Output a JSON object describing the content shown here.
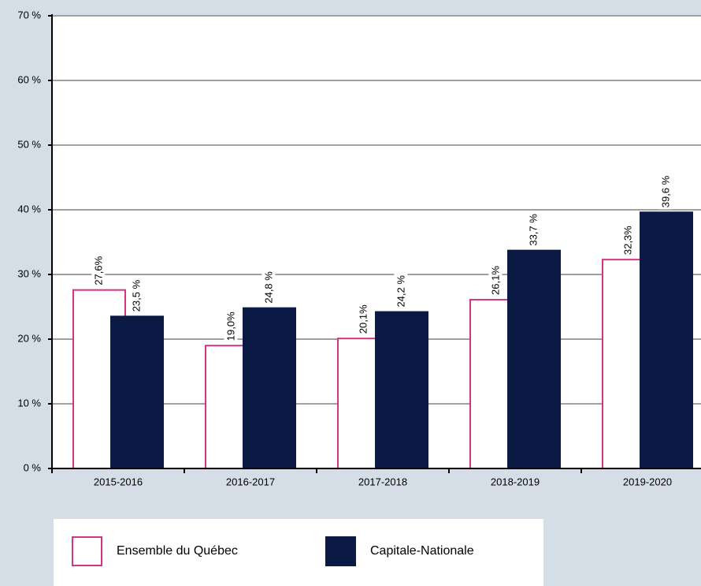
{
  "chart_data": {
    "type": "bar",
    "categories": [
      "2015-2016",
      "2016-2017",
      "2017-2018",
      "2018-2019",
      "2019-2020"
    ],
    "series": [
      {
        "name": "Ensemble du Québec",
        "color": "#d63384",
        "fill": "#ffffff",
        "values": [
          27.6,
          19.0,
          20.1,
          26.1,
          32.3
        ],
        "value_labels": [
          "27,6%",
          "19,0%",
          "20,1%",
          "26,1%",
          "32,3%"
        ]
      },
      {
        "name": "Capitale-Nationale",
        "color": "#0b1a45",
        "fill": "#0b1a45",
        "values": [
          23.5,
          24.8,
          24.2,
          33.7,
          39.6
        ],
        "value_labels": [
          "23,5 %",
          "24,8 %",
          "24,2 %",
          "33,7 %",
          "39,6 %"
        ]
      }
    ],
    "ylim": [
      0,
      70
    ],
    "yticks": [
      {
        "value": 0,
        "label": "0 %"
      },
      {
        "value": 10,
        "label": "10 %"
      },
      {
        "value": 20,
        "label": "20 %"
      },
      {
        "value": 30,
        "label": "30 %"
      },
      {
        "value": 40,
        "label": "40 %"
      },
      {
        "value": 50,
        "label": "50 %"
      },
      {
        "value": 60,
        "label": "60 %"
      },
      {
        "value": 70,
        "label": "70 %"
      }
    ],
    "grid": true
  }
}
